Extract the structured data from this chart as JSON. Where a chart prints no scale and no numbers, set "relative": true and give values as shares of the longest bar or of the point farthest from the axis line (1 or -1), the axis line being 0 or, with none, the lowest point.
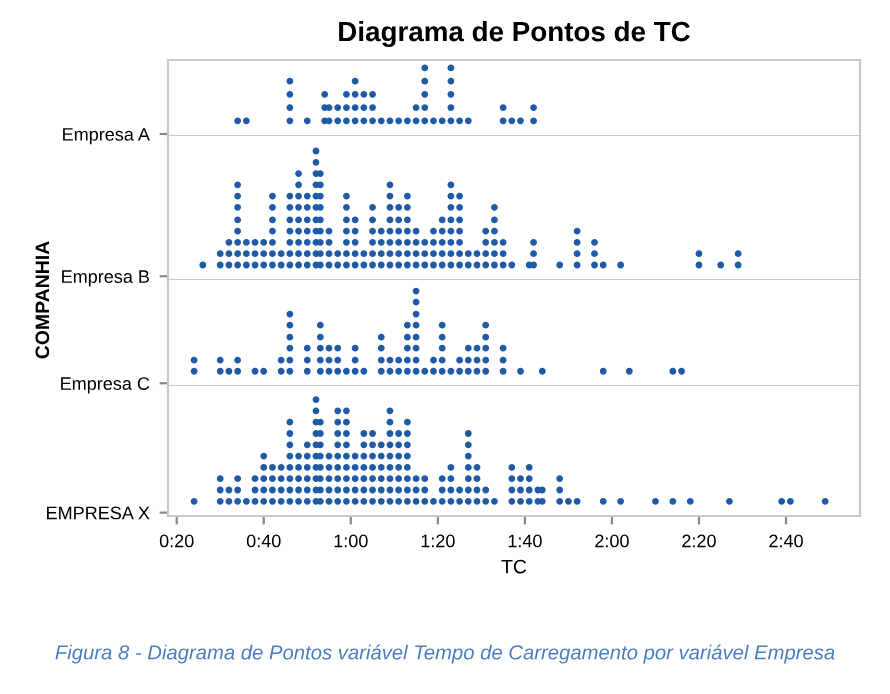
{
  "chart_data": [
    {
      "type": "scatter",
      "title": "Diagrama de Pontos de TC",
      "ylabel": "COMPANHIA",
      "relative": true,
      "marker": "circle",
      "grid": false,
      "legend": false,
      "tick_labels": false,
      "xlim": [
        18,
        177
      ],
      "series": [
        {
          "name": "Empresa A",
          "color": "#1f5aa6",
          "x": [
            34,
            36,
            46,
            46,
            46,
            46,
            50,
            54,
            54,
            54,
            55,
            55,
            57,
            57,
            59,
            59,
            59,
            61,
            61,
            61,
            61,
            63,
            63,
            63,
            65,
            65,
            65,
            67,
            69,
            71,
            73,
            75,
            75,
            77,
            77,
            77,
            77,
            77,
            79,
            81,
            83,
            83,
            83,
            83,
            83,
            85,
            87,
            95,
            95,
            97,
            99,
            102,
            102
          ],
          "values": [
            0.2,
            0.2,
            0.2,
            0.4,
            0.6,
            0.8,
            0.2,
            0.2,
            0.4,
            0.6,
            0.2,
            0.4,
            0.2,
            0.4,
            0.2,
            0.4,
            0.6,
            0.2,
            0.4,
            0.6,
            0.8,
            0.2,
            0.4,
            0.6,
            0.2,
            0.4,
            0.6,
            0.2,
            0.2,
            0.2,
            0.2,
            0.2,
            0.4,
            0.2,
            0.4,
            0.6,
            0.8,
            1,
            0.2,
            0.2,
            0.2,
            0.4,
            0.6,
            0.8,
            1,
            0.2,
            0.2,
            0.2,
            0.4,
            0.2,
            0.2,
            0.2,
            0.4
          ]
        }
      ]
    },
    {
      "type": "scatter",
      "relative": true,
      "marker": "circle",
      "grid": false,
      "legend": false,
      "tick_labels": false,
      "xlim": [
        18,
        177
      ],
      "series": [
        {
          "name": "Empresa B",
          "color": "#1f5aa6",
          "x": [
            26,
            30,
            30,
            32,
            32,
            32,
            34,
            34,
            34,
            34,
            34,
            34,
            34,
            34,
            36,
            36,
            36,
            38,
            38,
            38,
            40,
            40,
            40,
            42,
            42,
            42,
            42,
            42,
            42,
            42,
            44,
            44,
            46,
            46,
            46,
            46,
            46,
            46,
            46,
            48,
            48,
            48,
            48,
            48,
            48,
            48,
            48,
            48,
            50,
            50,
            50,
            50,
            50,
            50,
            50,
            52,
            52,
            52,
            52,
            52,
            52,
            52,
            52,
            52,
            52,
            52,
            53,
            53,
            53,
            53,
            53,
            53,
            53,
            53,
            53,
            55,
            55,
            55,
            55,
            57,
            57,
            59,
            59,
            59,
            59,
            59,
            59,
            59,
            61,
            61,
            61,
            61,
            61,
            63,
            63,
            65,
            65,
            65,
            65,
            65,
            65,
            67,
            67,
            67,
            67,
            69,
            69,
            69,
            69,
            69,
            69,
            69,
            69,
            71,
            71,
            71,
            71,
            71,
            71,
            73,
            73,
            73,
            73,
            73,
            73,
            73,
            75,
            75,
            75,
            75,
            77,
            77,
            77,
            79,
            79,
            79,
            79,
            81,
            81,
            81,
            81,
            81,
            83,
            83,
            83,
            83,
            83,
            83,
            83,
            83,
            85,
            85,
            85,
            85,
            85,
            85,
            85,
            87,
            87,
            89,
            89,
            91,
            91,
            91,
            91,
            93,
            93,
            93,
            93,
            93,
            93,
            95,
            95,
            95,
            97,
            101,
            102,
            102,
            102,
            108,
            112,
            112,
            112,
            112,
            116,
            116,
            116,
            118,
            122,
            140,
            140,
            145,
            149,
            149
          ],
          "values": [
            0.09,
            0.09,
            0.18,
            0.09,
            0.18,
            0.27,
            0.09,
            0.18,
            0.27,
            0.36,
            0.45,
            0.55,
            0.64,
            0.73,
            0.09,
            0.18,
            0.27,
            0.09,
            0.18,
            0.27,
            0.09,
            0.18,
            0.27,
            0.09,
            0.18,
            0.27,
            0.36,
            0.45,
            0.55,
            0.64,
            0.09,
            0.18,
            0.09,
            0.18,
            0.27,
            0.36,
            0.45,
            0.55,
            0.64,
            0.09,
            0.18,
            0.27,
            0.36,
            0.45,
            0.55,
            0.64,
            0.73,
            0.82,
            0.09,
            0.18,
            0.27,
            0.36,
            0.45,
            0.55,
            0.64,
            0.09,
            0.18,
            0.27,
            0.36,
            0.45,
            0.55,
            0.64,
            0.73,
            0.82,
            0.91,
            1,
            0.09,
            0.18,
            0.27,
            0.36,
            0.45,
            0.55,
            0.64,
            0.73,
            0.82,
            0.09,
            0.18,
            0.27,
            0.36,
            0.09,
            0.18,
            0.09,
            0.18,
            0.27,
            0.36,
            0.45,
            0.55,
            0.64,
            0.09,
            0.18,
            0.27,
            0.36,
            0.45,
            0.09,
            0.18,
            0.09,
            0.18,
            0.27,
            0.36,
            0.45,
            0.55,
            0.09,
            0.18,
            0.27,
            0.36,
            0.09,
            0.18,
            0.27,
            0.36,
            0.45,
            0.55,
            0.64,
            0.73,
            0.09,
            0.18,
            0.27,
            0.36,
            0.45,
            0.55,
            0.09,
            0.18,
            0.27,
            0.36,
            0.45,
            0.55,
            0.64,
            0.09,
            0.18,
            0.27,
            0.36,
            0.09,
            0.18,
            0.27,
            0.09,
            0.18,
            0.27,
            0.36,
            0.09,
            0.18,
            0.27,
            0.36,
            0.45,
            0.09,
            0.18,
            0.27,
            0.36,
            0.45,
            0.55,
            0.64,
            0.73,
            0.09,
            0.18,
            0.27,
            0.36,
            0.45,
            0.55,
            0.64,
            0.09,
            0.18,
            0.09,
            0.18,
            0.09,
            0.18,
            0.27,
            0.36,
            0.09,
            0.18,
            0.27,
            0.36,
            0.45,
            0.55,
            0.09,
            0.18,
            0.27,
            0.09,
            0.09,
            0.09,
            0.18,
            0.27,
            0.09,
            0.09,
            0.18,
            0.27,
            0.36,
            0.09,
            0.18,
            0.27,
            0.09,
            0.09,
            0.09,
            0.18,
            0.09,
            0.09,
            0.18
          ]
        }
      ]
    },
    {
      "type": "scatter",
      "relative": true,
      "marker": "circle",
      "grid": false,
      "legend": false,
      "tick_labels": false,
      "xlim": [
        18,
        177
      ],
      "series": [
        {
          "name": "Empresa C",
          "color": "#1f5aa6",
          "x": [
            24,
            24,
            30,
            30,
            32,
            34,
            34,
            38,
            40,
            44,
            44,
            46,
            46,
            46,
            46,
            46,
            46,
            50,
            50,
            50,
            53,
            53,
            53,
            53,
            53,
            55,
            55,
            55,
            57,
            57,
            57,
            59,
            61,
            61,
            61,
            63,
            67,
            67,
            67,
            67,
            69,
            69,
            71,
            71,
            73,
            73,
            73,
            73,
            73,
            75,
            75,
            75,
            75,
            75,
            75,
            75,
            75,
            77,
            79,
            79,
            81,
            81,
            81,
            81,
            81,
            83,
            85,
            85,
            87,
            87,
            87,
            89,
            89,
            89,
            91,
            91,
            91,
            91,
            91,
            95,
            95,
            95,
            99,
            104,
            118,
            124,
            134,
            136
          ],
          "values": [
            0.13,
            0.25,
            0.13,
            0.25,
            0.13,
            0.13,
            0.25,
            0.13,
            0.13,
            0.13,
            0.25,
            0.13,
            0.25,
            0.38,
            0.5,
            0.63,
            0.75,
            0.13,
            0.25,
            0.38,
            0.13,
            0.25,
            0.38,
            0.5,
            0.63,
            0.13,
            0.25,
            0.38,
            0.13,
            0.25,
            0.38,
            0.13,
            0.13,
            0.25,
            0.38,
            0.13,
            0.13,
            0.25,
            0.38,
            0.5,
            0.13,
            0.25,
            0.13,
            0.25,
            0.13,
            0.25,
            0.38,
            0.5,
            0.63,
            0.13,
            0.25,
            0.38,
            0.5,
            0.63,
            0.75,
            0.88,
            1,
            0.13,
            0.13,
            0.25,
            0.13,
            0.25,
            0.38,
            0.5,
            0.63,
            0.13,
            0.13,
            0.25,
            0.13,
            0.25,
            0.38,
            0.13,
            0.25,
            0.38,
            0.13,
            0.25,
            0.38,
            0.5,
            0.63,
            0.13,
            0.25,
            0.38,
            0.13,
            0.13,
            0.13,
            0.13,
            0.13,
            0.13
          ]
        }
      ]
    },
    {
      "type": "scatter",
      "xlabel": "TC",
      "relative": true,
      "marker": "circle",
      "grid": false,
      "legend": false,
      "tick_labels": "x",
      "xlim": [
        18,
        177
      ],
      "xticks": [
        {
          "value": 20,
          "label": "0:20"
        },
        {
          "value": 40,
          "label": "0:40"
        },
        {
          "value": 60,
          "label": "1:00"
        },
        {
          "value": 80,
          "label": "1:20"
        },
        {
          "value": 100,
          "label": "1:40"
        },
        {
          "value": 120,
          "label": "2:00"
        },
        {
          "value": 140,
          "label": "2:20"
        },
        {
          "value": 160,
          "label": "2:40"
        }
      ],
      "annotations": [
        "Figura 8 - Diagrama de Pontos variável Tempo de Carregamento por variável Empresa"
      ],
      "series": [
        {
          "name": "EMPRESA X",
          "color": "#1f5aa6",
          "x": [
            24,
            30,
            30,
            30,
            32,
            32,
            34,
            34,
            34,
            36,
            38,
            38,
            38,
            40,
            40,
            40,
            40,
            40,
            42,
            42,
            42,
            42,
            44,
            44,
            44,
            44,
            46,
            46,
            46,
            46,
            46,
            46,
            46,
            46,
            48,
            48,
            48,
            48,
            48,
            50,
            50,
            50,
            50,
            50,
            50,
            52,
            52,
            52,
            52,
            52,
            52,
            52,
            52,
            52,
            52,
            53,
            53,
            53,
            53,
            53,
            53,
            53,
            53,
            55,
            55,
            55,
            55,
            55,
            57,
            57,
            57,
            57,
            57,
            57,
            57,
            57,
            57,
            59,
            59,
            59,
            59,
            59,
            59,
            59,
            59,
            59,
            61,
            61,
            61,
            61,
            61,
            63,
            63,
            63,
            63,
            63,
            63,
            63,
            65,
            65,
            65,
            65,
            65,
            65,
            65,
            67,
            67,
            67,
            67,
            67,
            67,
            69,
            69,
            69,
            69,
            69,
            69,
            69,
            69,
            69,
            71,
            71,
            71,
            71,
            71,
            71,
            71,
            73,
            73,
            73,
            73,
            73,
            73,
            73,
            73,
            75,
            75,
            75,
            77,
            77,
            77,
            79,
            81,
            81,
            81,
            83,
            83,
            83,
            83,
            85,
            85,
            87,
            87,
            87,
            87,
            87,
            87,
            87,
            89,
            89,
            89,
            89,
            91,
            91,
            93,
            97,
            97,
            97,
            97,
            99,
            99,
            99,
            101,
            101,
            101,
            101,
            103,
            103,
            104,
            104,
            108,
            108,
            108,
            110,
            112,
            118,
            122,
            130,
            134,
            138,
            147,
            159,
            161,
            169
          ],
          "values": [
            0.1,
            0.1,
            0.2,
            0.3,
            0.1,
            0.2,
            0.1,
            0.2,
            0.3,
            0.1,
            0.1,
            0.2,
            0.3,
            0.1,
            0.2,
            0.3,
            0.4,
            0.5,
            0.1,
            0.2,
            0.3,
            0.4,
            0.1,
            0.2,
            0.3,
            0.4,
            0.1,
            0.2,
            0.3,
            0.4,
            0.5,
            0.6,
            0.7,
            0.8,
            0.1,
            0.2,
            0.3,
            0.4,
            0.5,
            0.1,
            0.2,
            0.3,
            0.4,
            0.5,
            0.6,
            0.1,
            0.2,
            0.3,
            0.4,
            0.5,
            0.6,
            0.7,
            0.8,
            0.9,
            1,
            0.1,
            0.2,
            0.3,
            0.4,
            0.5,
            0.6,
            0.7,
            0.8,
            0.1,
            0.2,
            0.3,
            0.4,
            0.5,
            0.1,
            0.2,
            0.3,
            0.4,
            0.5,
            0.6,
            0.7,
            0.8,
            0.9,
            0.1,
            0.2,
            0.3,
            0.4,
            0.5,
            0.6,
            0.7,
            0.8,
            0.9,
            0.1,
            0.2,
            0.3,
            0.4,
            0.5,
            0.1,
            0.2,
            0.3,
            0.4,
            0.5,
            0.6,
            0.7,
            0.1,
            0.2,
            0.3,
            0.4,
            0.5,
            0.6,
            0.7,
            0.1,
            0.2,
            0.3,
            0.4,
            0.5,
            0.6,
            0.1,
            0.2,
            0.3,
            0.4,
            0.5,
            0.6,
            0.7,
            0.8,
            0.9,
            0.1,
            0.2,
            0.3,
            0.4,
            0.5,
            0.6,
            0.7,
            0.1,
            0.2,
            0.3,
            0.4,
            0.5,
            0.6,
            0.7,
            0.8,
            0.1,
            0.2,
            0.3,
            0.1,
            0.2,
            0.3,
            0.1,
            0.1,
            0.2,
            0.3,
            0.1,
            0.2,
            0.3,
            0.4,
            0.1,
            0.2,
            0.1,
            0.2,
            0.3,
            0.4,
            0.5,
            0.6,
            0.7,
            0.1,
            0.2,
            0.3,
            0.4,
            0.1,
            0.2,
            0.1,
            0.1,
            0.2,
            0.3,
            0.4,
            0.1,
            0.2,
            0.3,
            0.1,
            0.2,
            0.3,
            0.4,
            0.1,
            0.2,
            0.1,
            0.2,
            0.1,
            0.2,
            0.3,
            0.1,
            0.1,
            0.1,
            0.1,
            0.1,
            0.1,
            0.1,
            0.1,
            0.1,
            0.1,
            0.1
          ]
        }
      ]
    }
  ]
}
